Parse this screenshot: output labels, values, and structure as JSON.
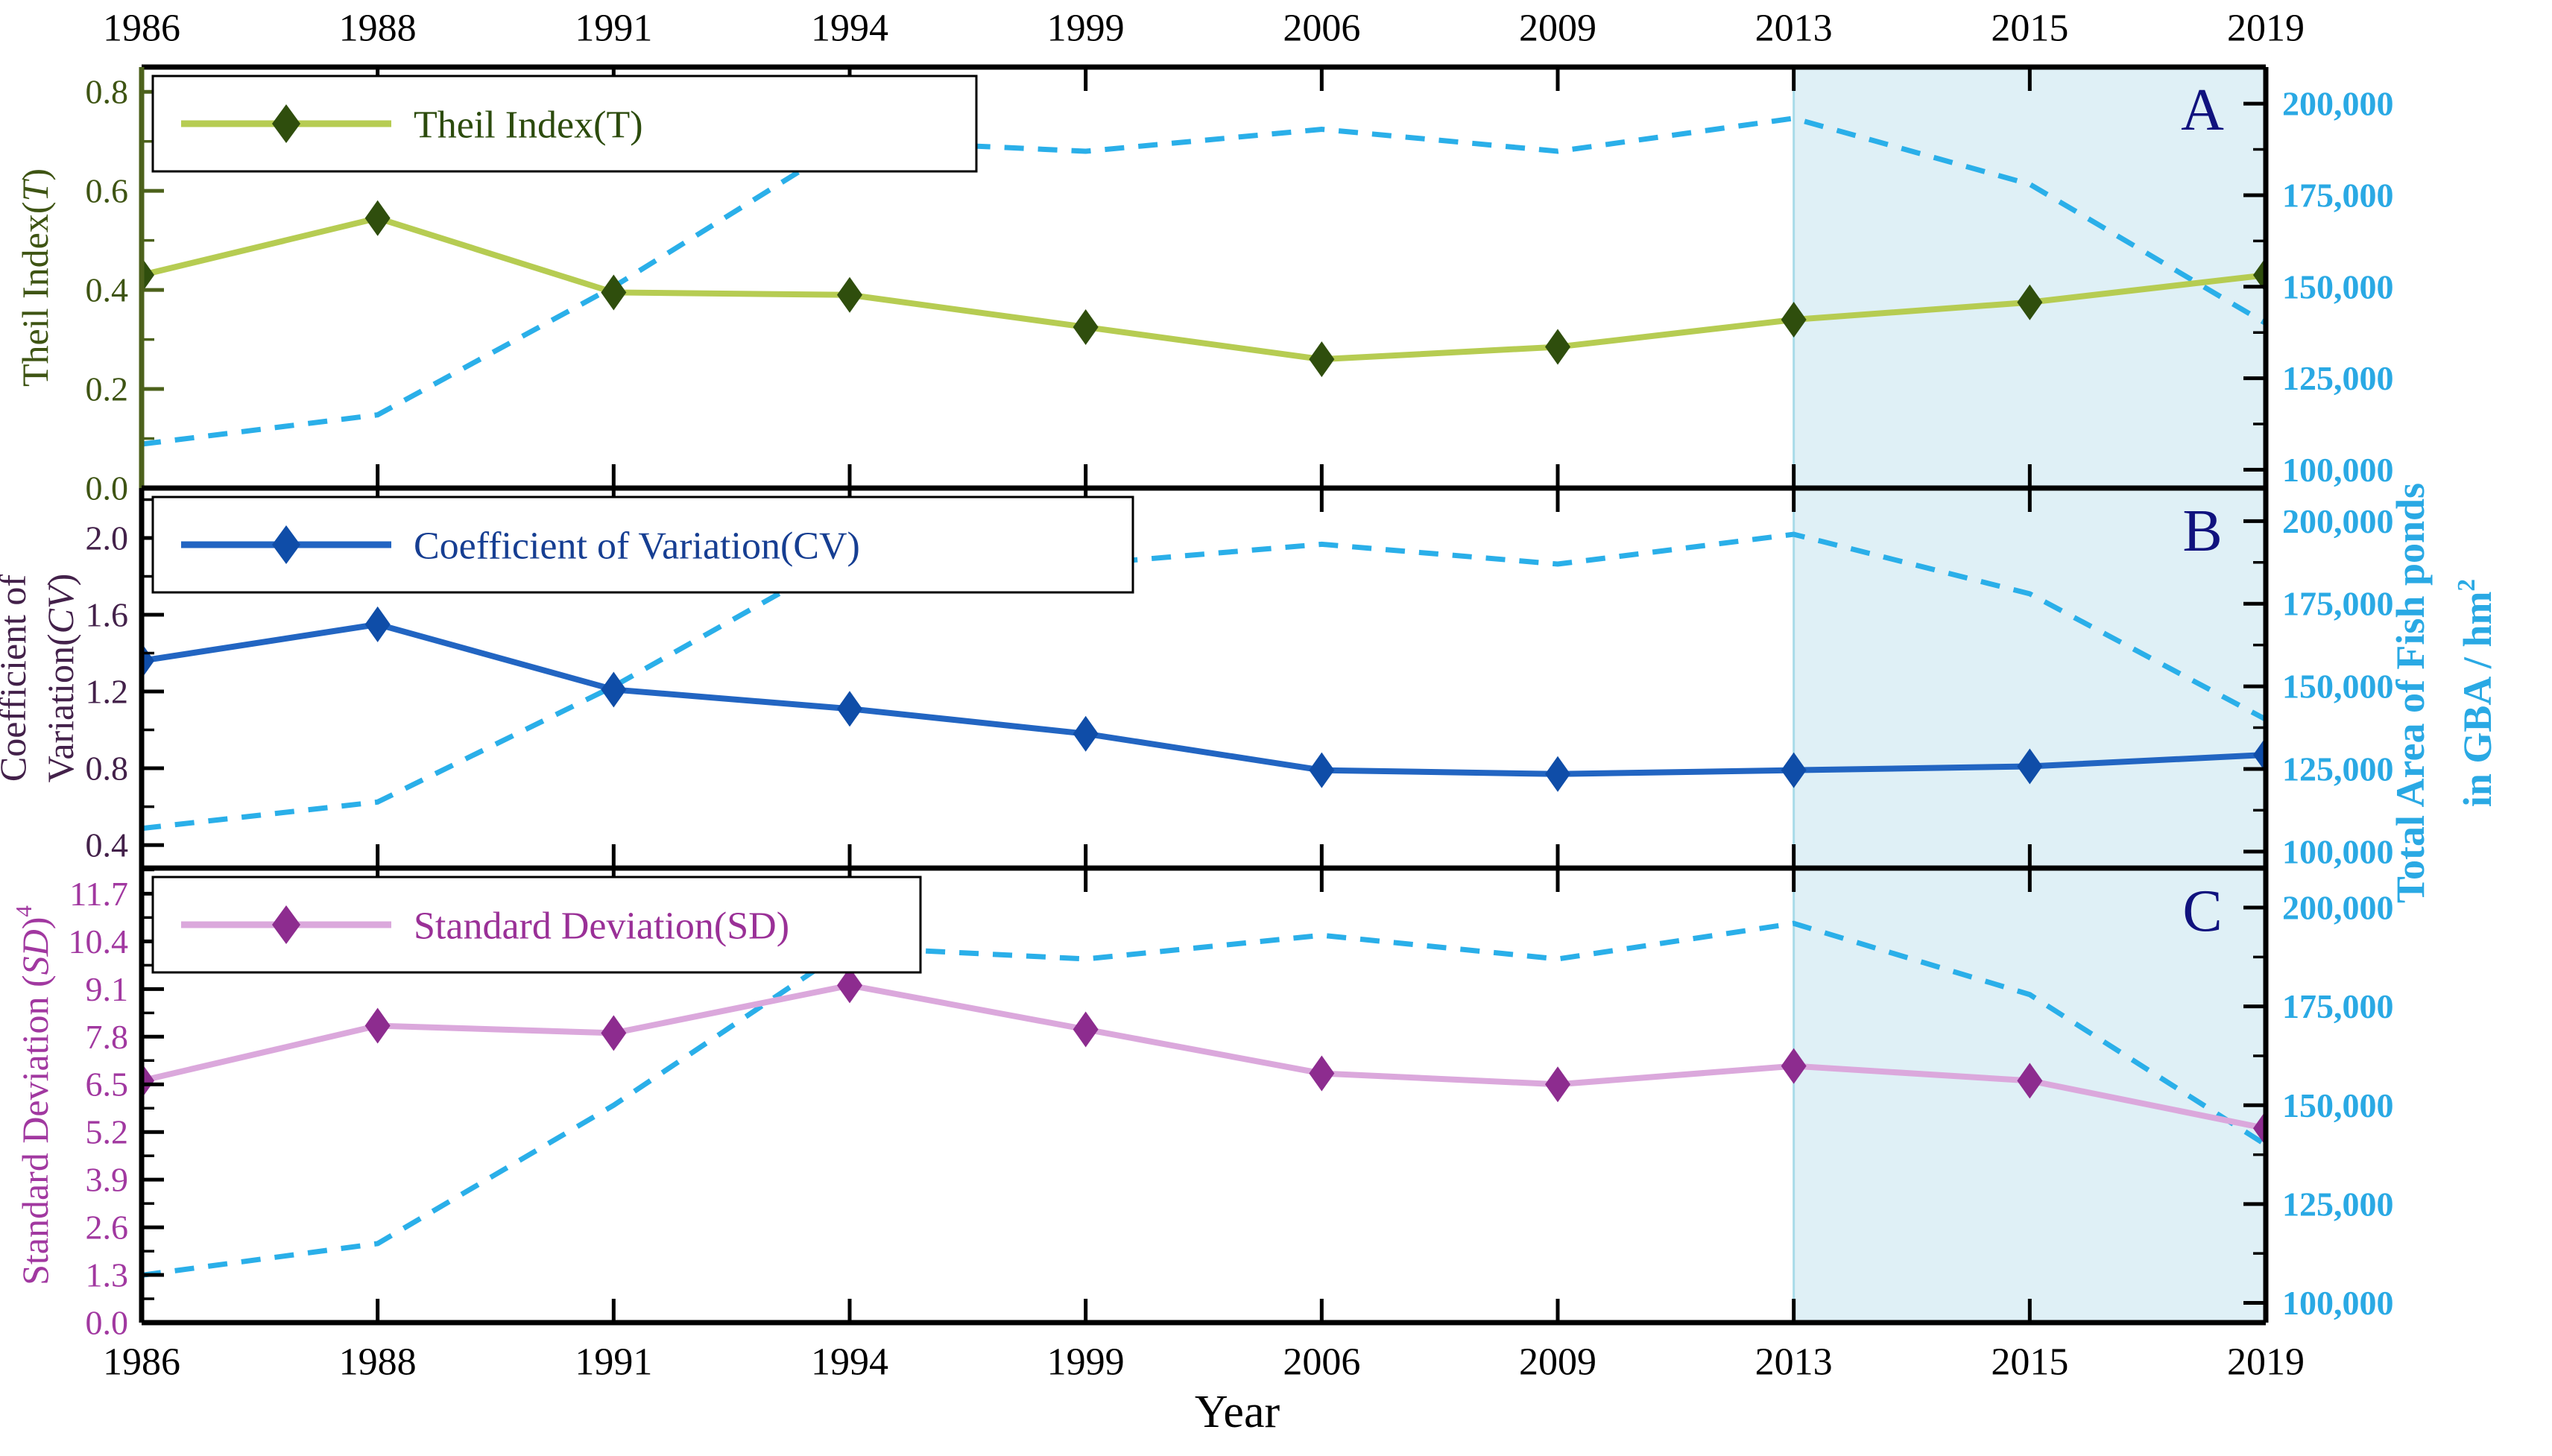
{
  "chart_data": {
    "type": "line",
    "title": "",
    "xlabel": "Year",
    "categories": [
      "1986",
      "1988",
      "1991",
      "1994",
      "1999",
      "2006",
      "2009",
      "2013",
      "2015",
      "2019"
    ],
    "x_axis": {
      "top_labels": [
        "1986",
        "1988",
        "1991",
        "1994",
        "1999",
        "2006",
        "2009",
        "2013",
        "2015",
        "2019"
      ],
      "bottom_labels": [
        "1986",
        "1988",
        "1991",
        "1994",
        "1999",
        "2006",
        "2009",
        "2013",
        "2015",
        "2019"
      ],
      "label": "Year"
    },
    "shade": {
      "from_category": "2013",
      "to_category": "2019",
      "fill": "#dff0f6",
      "border": "#a8dbe9"
    },
    "panel_letter_color": "#10127e",
    "panels": [
      {
        "key": "theil",
        "letter": "A",
        "legend": "Theil Index(T)",
        "ylabel_lines": [
          [
            {
              "t": "Theil Index("
            },
            {
              "t": "T",
              "italic": true
            },
            {
              "t": ")"
            }
          ]
        ],
        "ylim": [
          0,
          0.85
        ],
        "yticks": [
          {
            "v": 0.0,
            "l": "0.0"
          },
          {
            "v": 0.2,
            "l": "0.2"
          },
          {
            "v": 0.4,
            "l": "0.4"
          },
          {
            "v": 0.6,
            "l": "0.6"
          },
          {
            "v": 0.8,
            "l": "0.8"
          }
        ],
        "minor_step": 0.1,
        "values": [
          0.43,
          0.545,
          0.395,
          0.39,
          0.325,
          0.26,
          0.285,
          0.34,
          0.375,
          0.43
        ],
        "line_color": "#b6cc52",
        "marker_color": "#2f4e0d",
        "tick_label_color": "#3e5413",
        "left_spine_color": "#4c611b",
        "legend_text_color": "#2c4b0d"
      },
      {
        "key": "cv",
        "letter": "B",
        "legend": "Coefficient of Variation(CV)",
        "ylabel_lines": [
          [
            {
              "t": "Coefficient of"
            }
          ],
          [
            {
              "t": "Variation("
            },
            {
              "t": "CV",
              "italic": true
            },
            {
              "t": ")"
            }
          ]
        ],
        "ylim": [
          0.28,
          2.26
        ],
        "yticks": [
          {
            "v": 0.4,
            "l": "0.4"
          },
          {
            "v": 0.8,
            "l": "0.8"
          },
          {
            "v": 1.2,
            "l": "1.2"
          },
          {
            "v": 1.6,
            "l": "1.6"
          },
          {
            "v": 2.0,
            "l": "2.0"
          }
        ],
        "minor_step": 0.2,
        "values": [
          1.36,
          1.55,
          1.21,
          1.11,
          0.98,
          0.79,
          0.77,
          0.79,
          0.81,
          0.87
        ],
        "line_color": "#2265c2",
        "marker_color": "#0f4da8",
        "tick_label_color": "#43214a",
        "left_spine_color": "#000000",
        "legend_text_color": "#163e92"
      },
      {
        "key": "sd",
        "letter": "C",
        "legend": "Standard Deviation(SD)",
        "ylabel_lines": [
          [
            {
              "t": "Standard Deviation ("
            },
            {
              "t": "SD",
              "italic": true
            },
            {
              "t": ")"
            },
            {
              "t": "4",
              "sup": true
            }
          ]
        ],
        "ylim": [
          0,
          12.4
        ],
        "yticks": [
          {
            "v": 0.0,
            "l": "0.0"
          },
          {
            "v": 1.3,
            "l": "1.3"
          },
          {
            "v": 2.6,
            "l": "2.6"
          },
          {
            "v": 3.9,
            "l": "3.9"
          },
          {
            "v": 5.2,
            "l": "5.2"
          },
          {
            "v": 6.5,
            "l": "6.5"
          },
          {
            "v": 7.8,
            "l": "7.8"
          },
          {
            "v": 9.1,
            "l": "9.1"
          },
          {
            "v": 10.4,
            "l": "10.4"
          },
          {
            "v": 11.7,
            "l": "11.7"
          }
        ],
        "minor_step": 0.65,
        "values": [
          6.6,
          8.1,
          7.9,
          9.2,
          8.0,
          6.8,
          6.5,
          7.0,
          6.6,
          5.3
        ],
        "line_color": "#dba8dc",
        "marker_color": "#8d2c8f",
        "tick_label_color": "#a138a0",
        "left_spine_color": "#000000",
        "legend_text_color": "#9a3097"
      }
    ],
    "area_series": {
      "name": "Total Area of Fish ponds in GBA / hm2",
      "label_lines": [
        [
          {
            "t": "Total Area of Fish ponds"
          }
        ],
        [
          {
            "t": "in GBA / hm"
          },
          {
            "t": "2",
            "sup": true
          }
        ]
      ],
      "values": [
        107000,
        115000,
        150000,
        190000,
        187000,
        193000,
        187000,
        196000,
        178000,
        140000
      ],
      "ylim": [
        95000,
        210000
      ],
      "yticks": [
        {
          "v": 100000,
          "l": "100,000"
        },
        {
          "v": 125000,
          "l": "125,000"
        },
        {
          "v": 150000,
          "l": "150,000"
        },
        {
          "v": 175000,
          "l": "175,000"
        },
        {
          "v": 200000,
          "l": "200,000"
        }
      ],
      "minor_step": 12500,
      "line_color": "#2aafe9",
      "label_color": "#2aa9e4"
    }
  }
}
